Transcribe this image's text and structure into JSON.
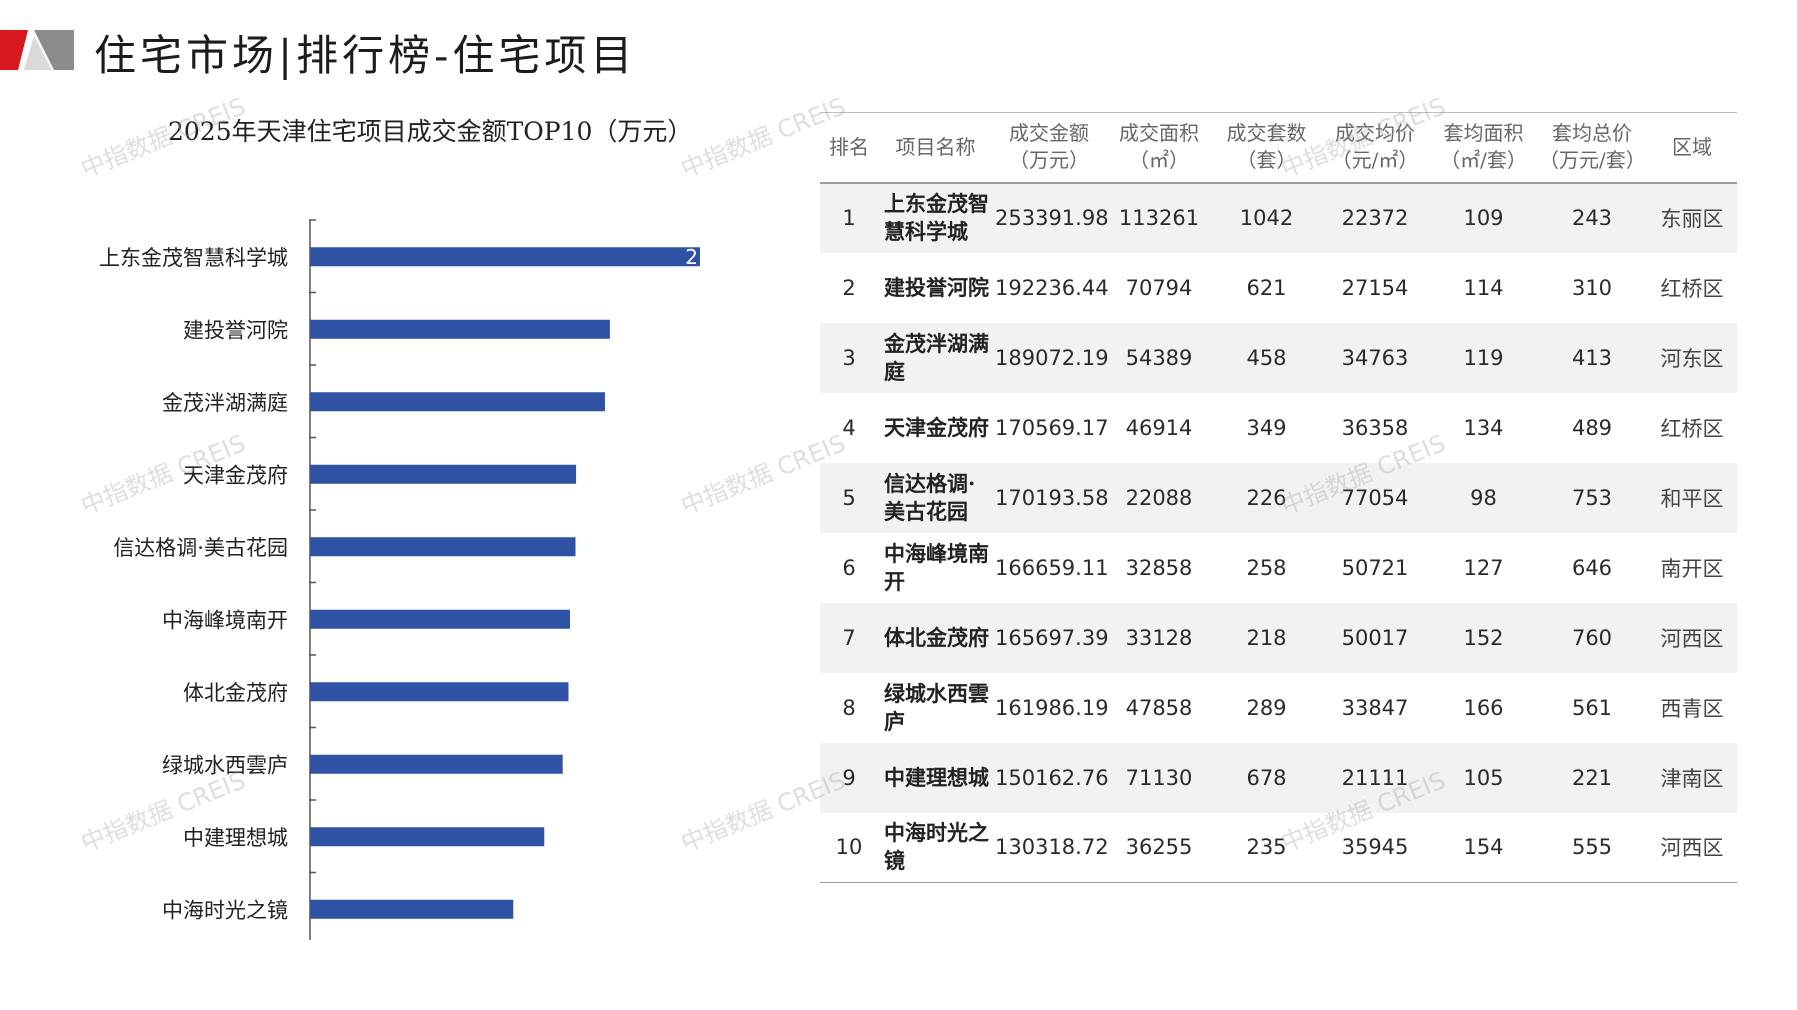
{
  "header": {
    "title": "住宅市场|排行榜-住宅项目",
    "accent_color": "#d7191f",
    "logo_grey": "#8c8c8c"
  },
  "watermark": "中指数据 CREIS",
  "chart_data": {
    "type": "bar",
    "orientation": "horizontal",
    "title": "2025年天津住宅项目成交金额TOP10（万元）",
    "categories": [
      "上东金茂智慧科学城",
      "建投誉河院",
      "金茂泮湖满庭",
      "天津金茂府",
      "信达格调·美古花园",
      "中海峰境南开",
      "体北金茂府",
      "绿城水西雲庐",
      "中建理想城",
      "中海时光之镜"
    ],
    "values": [
      253391.98,
      192236.44,
      189072.19,
      170569.17,
      170193.58,
      166659.11,
      165697.39,
      161986.19,
      150162.76,
      130318.72
    ],
    "clipped_data_label": "2",
    "xlim": [
      0,
      250000
    ],
    "bar_color": "#2f52a4",
    "grid": false,
    "legend": "none"
  },
  "table": {
    "headers": [
      [
        "排名",
        ""
      ],
      [
        "项目名称",
        ""
      ],
      [
        "成交金额",
        "（万元）"
      ],
      [
        "成交面积",
        "（㎡）"
      ],
      [
        "成交套数",
        "（套）"
      ],
      [
        "成交均价",
        "（元/㎡）"
      ],
      [
        "套均面积",
        "（㎡/套）"
      ],
      [
        "套均总价",
        "（万元/套）"
      ],
      [
        "区域",
        ""
      ]
    ],
    "rows": [
      {
        "rank": "1",
        "name": [
          "上东金茂智",
          "慧科学城"
        ],
        "amount": "253391.98",
        "area": "113261",
        "units": "1042",
        "avg_price": "22372",
        "avg_area": "109",
        "avg_total": "243",
        "district": "东丽区"
      },
      {
        "rank": "2",
        "name": [
          "建投誉河院",
          ""
        ],
        "amount": "192236.44",
        "area": "70794",
        "units": "621",
        "avg_price": "27154",
        "avg_area": "114",
        "avg_total": "310",
        "district": "红桥区"
      },
      {
        "rank": "3",
        "name": [
          "金茂泮湖满",
          "庭"
        ],
        "amount": "189072.19",
        "area": "54389",
        "units": "458",
        "avg_price": "34763",
        "avg_area": "119",
        "avg_total": "413",
        "district": "河东区"
      },
      {
        "rank": "4",
        "name": [
          "天津金茂府",
          ""
        ],
        "amount": "170569.17",
        "area": "46914",
        "units": "349",
        "avg_price": "36358",
        "avg_area": "134",
        "avg_total": "489",
        "district": "红桥区"
      },
      {
        "rank": "5",
        "name": [
          "信达格调·",
          "美古花园"
        ],
        "amount": "170193.58",
        "area": "22088",
        "units": "226",
        "avg_price": "77054",
        "avg_area": "98",
        "avg_total": "753",
        "district": "和平区"
      },
      {
        "rank": "6",
        "name": [
          "中海峰境南",
          "开"
        ],
        "amount": "166659.11",
        "area": "32858",
        "units": "258",
        "avg_price": "50721",
        "avg_area": "127",
        "avg_total": "646",
        "district": "南开区"
      },
      {
        "rank": "7",
        "name": [
          "体北金茂府",
          ""
        ],
        "amount": "165697.39",
        "area": "33128",
        "units": "218",
        "avg_price": "50017",
        "avg_area": "152",
        "avg_total": "760",
        "district": "河西区"
      },
      {
        "rank": "8",
        "name": [
          "绿城水西雲",
          "庐"
        ],
        "amount": "161986.19",
        "area": "47858",
        "units": "289",
        "avg_price": "33847",
        "avg_area": "166",
        "avg_total": "561",
        "district": "西青区"
      },
      {
        "rank": "9",
        "name": [
          "中建理想城",
          ""
        ],
        "amount": "150162.76",
        "area": "71130",
        "units": "678",
        "avg_price": "21111",
        "avg_area": "105",
        "avg_total": "221",
        "district": "津南区"
      },
      {
        "rank": "10",
        "name": [
          "中海时光之",
          "镜"
        ],
        "amount": "130318.72",
        "area": "36255",
        "units": "235",
        "avg_price": "35945",
        "avg_area": "154",
        "avg_total": "555",
        "district": "河西区"
      }
    ]
  }
}
